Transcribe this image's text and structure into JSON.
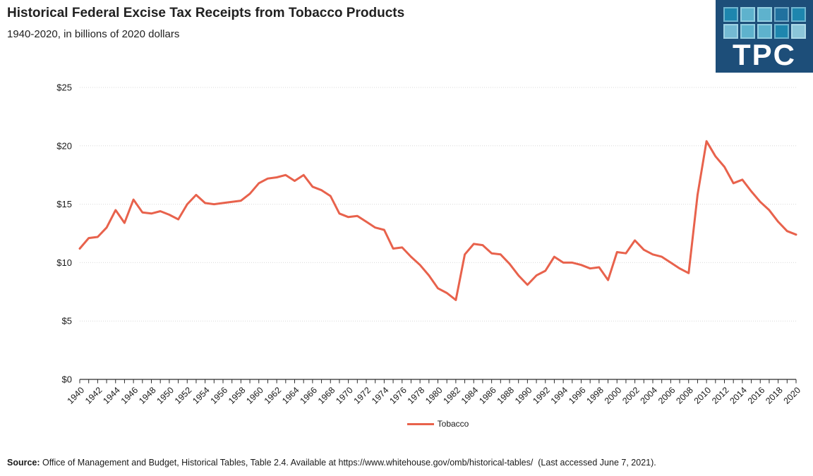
{
  "header": {
    "title": "Historical Federal Excise Tax Receipts from Tobacco Products",
    "subtitle": "1940-2020, in billions of 2020 dollars"
  },
  "logo": {
    "text": "TPC",
    "background": "#1d4e79",
    "squares": [
      "#1e86ae",
      "#5eb2cd",
      "#5eb2cd",
      "#20719f",
      "#1e86ae",
      "#74bad3",
      "#5eb2cd",
      "#5eb2cd",
      "#1e86ae",
      "#8cc6d9"
    ]
  },
  "legend": {
    "label": "Tobacco"
  },
  "source": {
    "label": "Source:",
    "text": " Office of Management and Budget, Historical Tables, Table 2.4. Available at https://www.whitehouse.gov/omb/historical-tables/  (Last accessed June 7, 2021)."
  },
  "chart_data": {
    "type": "line",
    "title": "Historical Federal Excise Tax Receipts from Tobacco Products",
    "subtitle": "1940-2020, in billions of 2020 dollars",
    "xlabel": "",
    "ylabel": "billions of 2020 dollars",
    "xlim": [
      1940,
      2020
    ],
    "ylim": [
      0,
      25
    ],
    "y_ticks": [
      0,
      5,
      10,
      15,
      20,
      25
    ],
    "y_tick_labels": [
      "$0",
      "$5",
      "$10",
      "$15",
      "$20",
      "$25"
    ],
    "y_prefix": "$",
    "x_tick_step": 2,
    "grid": "horizontal-dotted",
    "legend_position": "bottom-center",
    "years": [
      1940,
      1941,
      1942,
      1943,
      1944,
      1945,
      1946,
      1947,
      1948,
      1949,
      1950,
      1951,
      1952,
      1953,
      1954,
      1955,
      1956,
      1957,
      1958,
      1959,
      1960,
      1961,
      1962,
      1963,
      1964,
      1965,
      1966,
      1967,
      1968,
      1969,
      1970,
      1971,
      1972,
      1973,
      1974,
      1975,
      1976,
      1977,
      1978,
      1979,
      1980,
      1981,
      1982,
      1983,
      1984,
      1985,
      1986,
      1987,
      1988,
      1989,
      1990,
      1991,
      1992,
      1993,
      1994,
      1995,
      1996,
      1997,
      1998,
      1999,
      2000,
      2001,
      2002,
      2003,
      2004,
      2005,
      2006,
      2007,
      2008,
      2009,
      2010,
      2011,
      2012,
      2013,
      2014,
      2015,
      2016,
      2017,
      2018,
      2019,
      2020
    ],
    "series": [
      {
        "name": "Tobacco",
        "color": "#e8624c",
        "values": [
          11.2,
          12.1,
          12.2,
          13.0,
          14.5,
          13.4,
          15.4,
          14.3,
          14.2,
          14.4,
          14.1,
          13.7,
          15.0,
          15.8,
          15.1,
          15.0,
          15.1,
          15.2,
          15.3,
          15.9,
          16.8,
          17.2,
          17.3,
          17.5,
          17.0,
          17.5,
          16.5,
          16.2,
          15.7,
          14.2,
          13.9,
          14.0,
          13.5,
          13.0,
          12.8,
          11.2,
          11.3,
          10.5,
          9.8,
          8.9,
          7.8,
          7.4,
          6.8,
          10.7,
          11.6,
          11.5,
          10.8,
          10.7,
          9.9,
          8.9,
          8.1,
          8.9,
          9.3,
          10.5,
          10.0,
          10.0,
          9.8,
          9.5,
          9.6,
          8.5,
          10.9,
          10.8,
          11.9,
          11.1,
          10.7,
          10.5,
          10.0,
          9.5,
          9.1,
          15.8,
          20.4,
          19.1,
          18.2,
          16.8,
          17.1,
          16.1,
          15.2,
          14.5,
          13.5,
          12.7,
          12.4
        ]
      }
    ]
  }
}
